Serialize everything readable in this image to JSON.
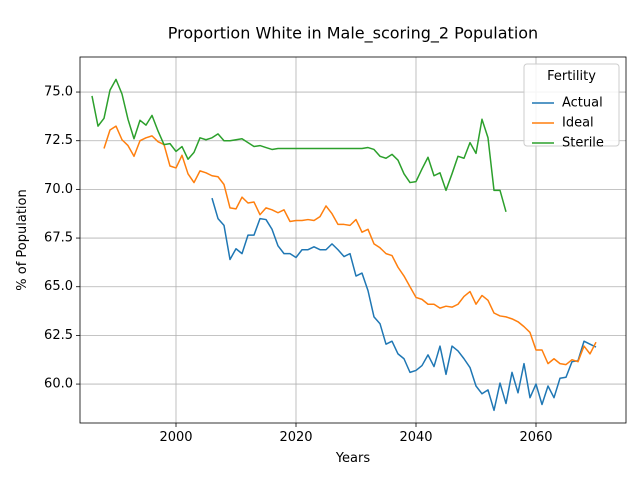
{
  "chart_data": {
    "type": "line",
    "title": "Proportion White in Male_scoring_2 Population",
    "xlabel": "Years",
    "ylabel": "% of Population",
    "xlim": [
      1984,
      2075
    ],
    "ylim": [
      58,
      76.8
    ],
    "xticks": [
      2000,
      2020,
      2040,
      2060
    ],
    "yticks": [
      60.0,
      62.5,
      65.0,
      67.5,
      70.0,
      72.5,
      75.0
    ],
    "ytick_labels": [
      "60.0",
      "62.5",
      "65.0",
      "67.5",
      "70.0",
      "72.5",
      "75.0"
    ],
    "grid": true,
    "legend": {
      "title": "Fertility",
      "placement": "top-right"
    },
    "series": [
      {
        "name": "Actual",
        "color": "#1f77b4",
        "x": [
          2006,
          2007,
          2008,
          2009,
          2010,
          2011,
          2012,
          2013,
          2014,
          2015,
          2016,
          2017,
          2018,
          2019,
          2020,
          2021,
          2022,
          2023,
          2024,
          2025,
          2026,
          2027,
          2028,
          2029,
          2030,
          2031,
          2032,
          2033,
          2034,
          2035,
          2036,
          2037,
          2038,
          2039,
          2040,
          2041,
          2042,
          2043,
          2044,
          2045,
          2046,
          2047,
          2048,
          2049,
          2050,
          2051,
          2052,
          2053,
          2054,
          2055,
          2056,
          2057,
          2058,
          2059,
          2060,
          2061,
          2062,
          2063,
          2064,
          2065,
          2066,
          2067,
          2068,
          2069,
          2070
        ],
        "y": [
          69.55,
          68.5,
          68.15,
          66.4,
          66.95,
          66.7,
          67.65,
          67.65,
          68.5,
          68.45,
          67.95,
          67.1,
          66.7,
          66.7,
          66.5,
          66.9,
          66.9,
          67.05,
          66.9,
          66.9,
          67.2,
          66.9,
          66.55,
          66.7,
          65.55,
          65.7,
          64.8,
          63.45,
          63.1,
          62.05,
          62.2,
          61.55,
          61.3,
          60.6,
          60.7,
          60.95,
          61.5,
          60.9,
          61.95,
          60.5,
          61.95,
          61.7,
          61.3,
          60.85,
          59.9,
          59.5,
          59.7,
          58.65,
          60.05,
          59.0,
          60.6,
          59.55,
          61.05,
          59.3,
          60.0,
          58.95,
          59.9,
          59.3,
          60.3,
          60.35,
          61.15,
          61.2,
          62.2,
          62.05,
          61.9
        ]
      },
      {
        "name": "Ideal",
        "color": "#ff7f0e",
        "x": [
          1988,
          1989,
          1990,
          1991,
          1992,
          1993,
          1994,
          1995,
          1996,
          1997,
          1998,
          1999,
          2000,
          2001,
          2002,
          2003,
          2004,
          2005,
          2006,
          2007,
          2008,
          2009,
          2010,
          2011,
          2012,
          2013,
          2014,
          2015,
          2016,
          2017,
          2018,
          2019,
          2020,
          2021,
          2022,
          2023,
          2024,
          2025,
          2026,
          2027,
          2028,
          2029,
          2030,
          2031,
          2032,
          2033,
          2034,
          2035,
          2036,
          2037,
          2038,
          2039,
          2040,
          2041,
          2042,
          2043,
          2044,
          2045,
          2046,
          2047,
          2048,
          2049,
          2050,
          2051,
          2052,
          2053,
          2054,
          2055,
          2056,
          2057,
          2058,
          2059,
          2060,
          2061,
          2062,
          2063,
          2064,
          2065,
          2066,
          2067,
          2068,
          2069,
          2070
        ],
        "y": [
          72.1,
          73.05,
          73.25,
          72.55,
          72.25,
          71.7,
          72.5,
          72.65,
          72.75,
          72.45,
          72.3,
          71.2,
          71.1,
          71.75,
          70.8,
          70.35,
          70.95,
          70.85,
          70.7,
          70.65,
          70.25,
          69.05,
          69.0,
          69.6,
          69.3,
          69.35,
          68.7,
          69.05,
          68.95,
          68.8,
          68.95,
          68.35,
          68.4,
          68.4,
          68.45,
          68.4,
          68.6,
          69.15,
          68.75,
          68.2,
          68.2,
          68.15,
          68.45,
          67.8,
          67.95,
          67.2,
          67.0,
          66.7,
          66.6,
          66.0,
          65.55,
          65.0,
          64.45,
          64.35,
          64.1,
          64.1,
          63.9,
          64.0,
          63.95,
          64.1,
          64.5,
          64.75,
          64.1,
          64.55,
          64.3,
          63.65,
          63.5,
          63.45,
          63.35,
          63.2,
          62.95,
          62.65,
          61.75,
          61.75,
          61.05,
          61.3,
          61.05,
          61.0,
          61.25,
          61.15,
          61.95,
          61.55,
          62.15
        ]
      },
      {
        "name": "Sterile",
        "color": "#2ca02c",
        "x": [
          1986,
          1987,
          1988,
          1989,
          1990,
          1991,
          1992,
          1993,
          1994,
          1995,
          1996,
          1997,
          1998,
          1999,
          2000,
          2001,
          2002,
          2003,
          2004,
          2005,
          2006,
          2007,
          2008,
          2009,
          2010,
          2011,
          2012,
          2013,
          2014,
          2015,
          2016,
          2017,
          2018,
          2019,
          2020,
          2021,
          2022,
          2023,
          2024,
          2025,
          2026,
          2027,
          2028,
          2029,
          2030,
          2031,
          2032,
          2033,
          2034,
          2035,
          2036,
          2037,
          2038,
          2039,
          2040,
          2041,
          2042,
          2043,
          2044,
          2045,
          2046,
          2047,
          2048,
          2049,
          2050,
          2051,
          2052,
          2053,
          2054,
          2055
        ],
        "y": [
          74.8,
          73.25,
          73.65,
          75.1,
          75.65,
          74.9,
          73.6,
          72.6,
          73.55,
          73.3,
          73.8,
          73.0,
          72.3,
          72.35,
          71.95,
          72.2,
          71.55,
          71.9,
          72.65,
          72.55,
          72.65,
          72.85,
          72.5,
          72.5,
          72.55,
          72.6,
          72.4,
          72.2,
          72.25,
          72.15,
          72.05,
          72.1,
          72.1,
          72.1,
          72.1,
          72.1,
          72.1,
          72.1,
          72.1,
          72.1,
          72.1,
          72.1,
          72.1,
          72.1,
          72.1,
          72.1,
          72.15,
          72.05,
          71.7,
          71.6,
          71.8,
          71.5,
          70.8,
          70.35,
          70.4,
          71.05,
          71.65,
          70.7,
          70.85,
          69.95,
          70.8,
          71.7,
          71.6,
          72.4,
          71.85,
          73.6,
          72.65,
          69.95,
          69.95,
          68.85
        ]
      }
    ]
  }
}
